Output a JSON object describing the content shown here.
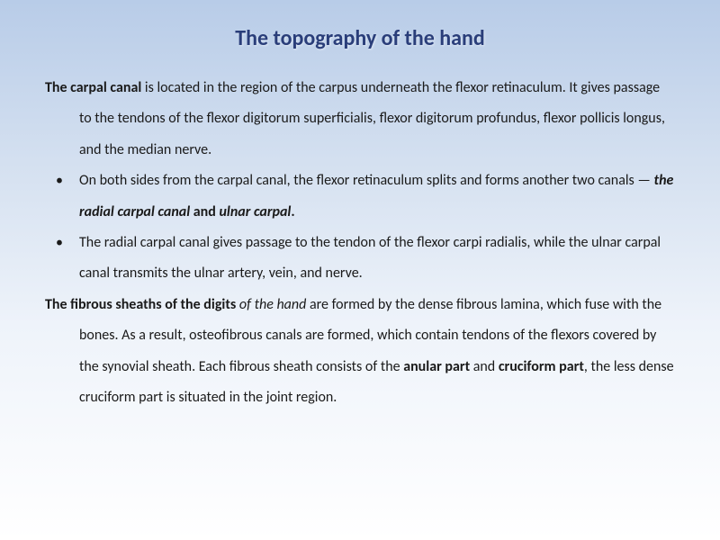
{
  "slide": {
    "title": "The topography of the hand",
    "title_color": "#2a3e7a",
    "title_fontsize": 24,
    "body_fontsize": 16,
    "body_color": "#1a1a1a",
    "background_gradient": [
      "#b8cce8",
      "#d4e0f0",
      "#eef3fa",
      "#ffffff"
    ],
    "paragraphs": [
      {
        "type": "para",
        "runs": [
          {
            "text": "The carpal canal",
            "style": "bold"
          },
          {
            "text": " is located in the region of the carpus underneath the flexor retinaculum. It gives passage to the tendons of the flexor digitorum superficialis, flexor digitorum profundus, flexor pollicis longus, and the median nerve.",
            "style": "normal"
          }
        ]
      },
      {
        "type": "bullet",
        "runs": [
          {
            "text": "On both sides from the carpal canal, the flexor retinaculum splits and forms another two canals — ",
            "style": "normal"
          },
          {
            "text": "the radial carpal canal ",
            "style": "bolditalic"
          },
          {
            "text": "and ",
            "style": "bold"
          },
          {
            "text": "ulnar carpal",
            "style": "bolditalic"
          },
          {
            "text": ".",
            "style": "bold"
          }
        ]
      },
      {
        "type": "bullet",
        "runs": [
          {
            "text": "The radial carpal canal gives passage to the tendon of the flexor carpi radialis, while the ulnar carpal canal transmits the ulnar artery, vein, and nerve.",
            "style": "normal"
          }
        ]
      },
      {
        "type": "para",
        "runs": [
          {
            "text": "The fibrous sheaths of the digits ",
            "style": "bold"
          },
          {
            "text": "of the hand ",
            "style": "italic"
          },
          {
            "text": " are formed by the dense fibrous lamina, which fuse with the bones. As a result, osteofibrous canals are formed, which contain tendons of the flexors covered by the synovial sheath. Each fibrous sheath consists of the ",
            "style": "normal"
          },
          {
            "text": "anular part ",
            "style": "bold"
          },
          {
            "text": "and ",
            "style": "normal"
          },
          {
            "text": "cruciform part",
            "style": "bold"
          },
          {
            "text": ", the less dense cruciform part is situated in the joint region.",
            "style": "normal"
          }
        ]
      }
    ]
  }
}
